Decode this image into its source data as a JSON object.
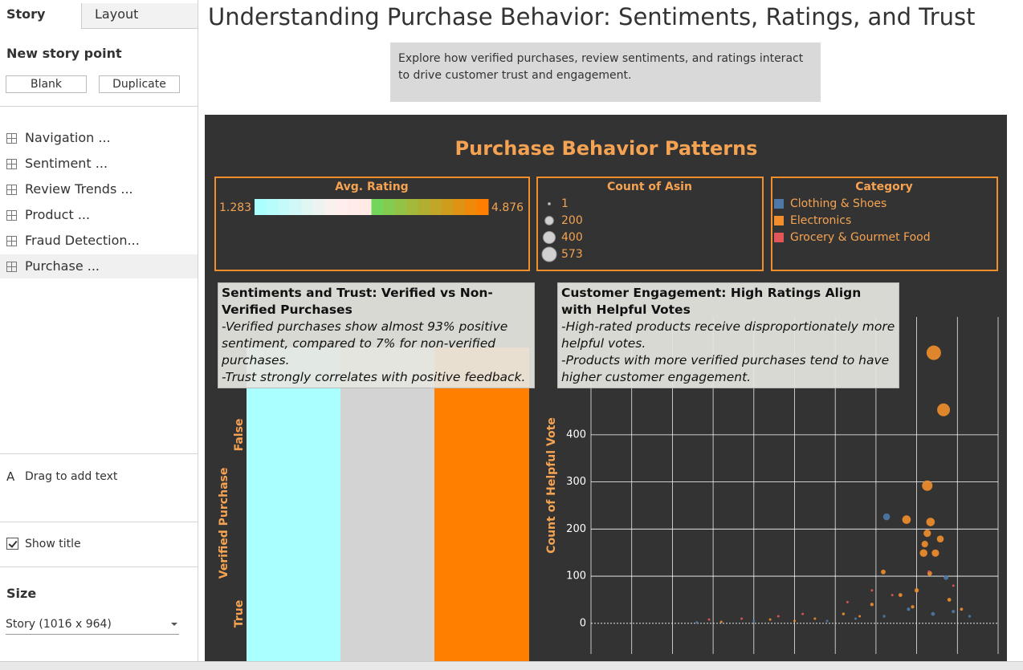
{
  "sidebar": {
    "tabs": [
      "Story",
      "Layout"
    ],
    "new_story_point": "New story point",
    "buttons": [
      "Blank",
      "Duplicate"
    ],
    "story_points": [
      "Navigation ...",
      "Sentiment ...",
      "Review Trends ...",
      "Product ...",
      "Fraud Detection...",
      "Purchase ..."
    ],
    "drag_text": "Drag to add text",
    "show_title": "Show title",
    "size_heading": "Size",
    "size_value": "Story (1016 x 964)"
  },
  "story": {
    "title": "Understanding Purchase Behavior: Sentiments, Ratings, and Trust",
    "description": "Explore how verified purchases, review sentiments, and ratings interact to drive customer trust and engagement."
  },
  "dashboard": {
    "title": "Purchase Behavior Patterns",
    "color_legend": {
      "title": "Avg. Rating",
      "min": 1.283,
      "max": 4.876
    },
    "size_legend": {
      "title": "Count of Asin",
      "values": [
        1,
        200,
        400,
        573
      ]
    },
    "category_legend_title": "Category",
    "left_chart": {
      "y_label": "Verified Purchase",
      "rows": [
        "False",
        "True"
      ]
    },
    "annotations": [
      {
        "title": "Sentiments and Trust: Verified vs Non-Verified Purchases",
        "lines": [
          "-Verified purchases show  almost 93% positive sentiment, compared to 7% for non-verified purchases.",
          "-Trust strongly correlates with positive feedback."
        ]
      },
      {
        "title": "Customer Engagement: High Ratings Align with Helpful Votes",
        "lines": [
          "-High-rated products receive disproportionately more helpful votes.",
          "-Products with more verified purchases tend to have higher customer engagement."
        ]
      }
    ]
  },
  "chart_data": {
    "type": "scatter",
    "y_label": "Count of Helpful Vote",
    "xlim": [
      0,
      10
    ],
    "ylim": [
      -65,
      650
    ],
    "yticks": [
      0,
      100,
      200,
      300,
      400
    ],
    "grid": true,
    "series": [
      {
        "name": "Clothing & Shoes",
        "color": "#4e79a7",
        "x": [
          7.26,
          8.72,
          7.8,
          8.4,
          8.9,
          6.5,
          5.8,
          9.3,
          7.2,
          2.6,
          4.0
        ],
        "y": [
          226,
          97,
          30,
          20,
          25,
          10,
          5,
          15,
          15,
          2,
          5
        ],
        "size": [
          130,
          60,
          30,
          40,
          30,
          15,
          10,
          20,
          20,
          5,
          8
        ]
      },
      {
        "name": "Electronics",
        "color": "#f28e2b",
        "x": [
          8.42,
          8.66,
          8.26,
          7.75,
          8.34,
          8.26,
          8.58,
          8.17,
          8.46,
          8.2,
          7.18,
          8.32,
          7.6,
          6.9,
          6.2,
          5.5,
          8.0,
          8.8,
          7.9,
          6.6,
          5.0,
          3.2,
          4.4,
          9.1
        ],
        "y": [
          574,
          453,
          292,
          220,
          215,
          191,
          179,
          149,
          149,
          168,
          109,
          106,
          60,
          40,
          20,
          10,
          70,
          50,
          35,
          15,
          5,
          3,
          8,
          30
        ],
        "size": [
          573,
          450,
          300,
          200,
          200,
          150,
          130,
          160,
          150,
          120,
          60,
          60,
          40,
          30,
          20,
          15,
          50,
          40,
          30,
          15,
          10,
          5,
          8,
          25
        ]
      },
      {
        "name": "Grocery & Gourmet Food",
        "color": "#e15759",
        "x": [
          8.3,
          7.4,
          6.3,
          5.2,
          3.7,
          2.9,
          8.9,
          6.9,
          4.6
        ],
        "y": [
          110,
          60,
          45,
          20,
          10,
          8,
          80,
          70,
          15
        ],
        "size": [
          15,
          10,
          10,
          8,
          5,
          5,
          10,
          10,
          5
        ]
      }
    ]
  }
}
